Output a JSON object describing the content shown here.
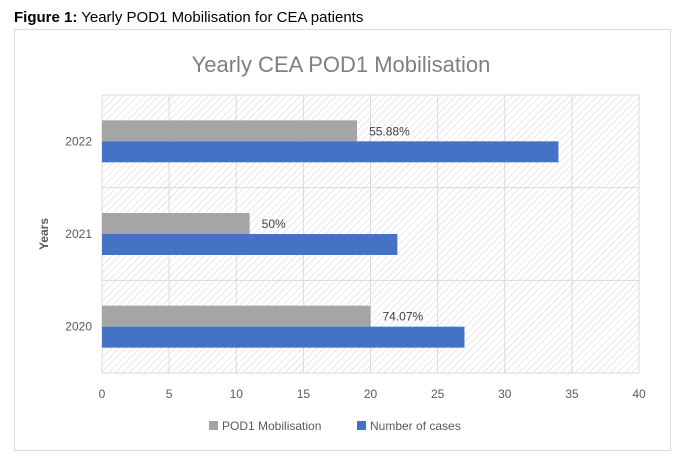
{
  "caption": {
    "label": "Figure 1:",
    "text": " Yearly POD1 Mobilisation for CEA patients"
  },
  "chart_data": {
    "type": "bar",
    "orientation": "horizontal",
    "title": "Yearly CEA POD1 Mobilisation",
    "ylabel": "Years",
    "xlabel": "",
    "categories": [
      "2020",
      "2021",
      "2022"
    ],
    "series": [
      {
        "name": "POD1 Mobilisation",
        "values": [
          20,
          11,
          19
        ],
        "color": "#a5a5a5",
        "labels": [
          "74.07%",
          "50%",
          "55.88%"
        ]
      },
      {
        "name": "Number of cases",
        "values": [
          27,
          22,
          34
        ],
        "color": "#4472c4"
      }
    ],
    "xlim": [
      0,
      40
    ],
    "xticks": [
      0,
      5,
      10,
      15,
      20,
      25,
      30,
      35,
      40
    ],
    "grid": true,
    "background": "hatched",
    "legend": "bottom"
  }
}
